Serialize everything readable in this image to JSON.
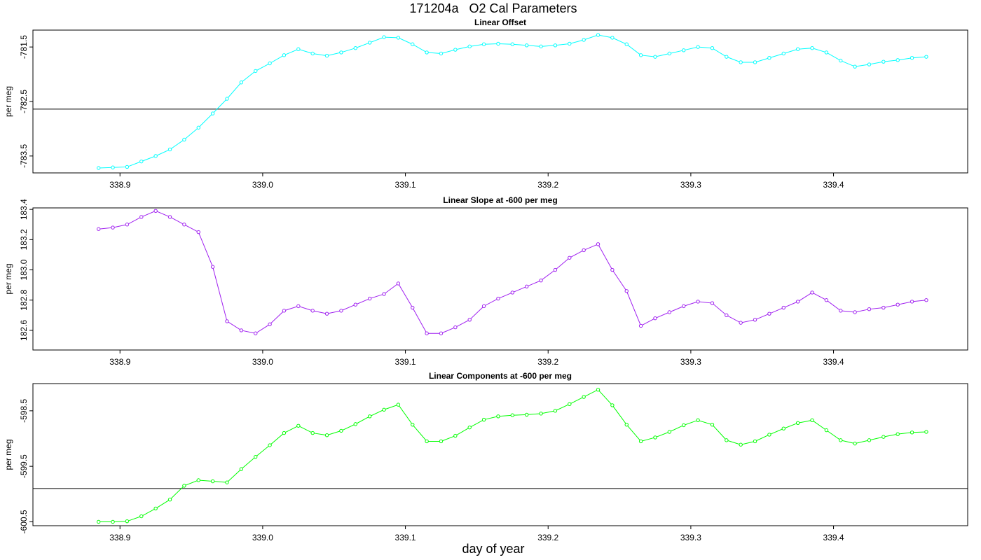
{
  "title": "171204a   O2 Cal Parameters",
  "xlabel": "day of year",
  "chart_data": [
    {
      "type": "line",
      "title": "Linear Offset",
      "ylabel": "per meg",
      "x": [
        338.885,
        338.895,
        338.905,
        338.915,
        338.925,
        338.935,
        338.945,
        338.955,
        338.965,
        338.975,
        338.985,
        338.995,
        339.005,
        339.015,
        339.025,
        339.035,
        339.045,
        339.055,
        339.065,
        339.075,
        339.085,
        339.095,
        339.105,
        339.115,
        339.125,
        339.135,
        339.145,
        339.155,
        339.165,
        339.175,
        339.185,
        339.195,
        339.205,
        339.215,
        339.225,
        339.235,
        339.245,
        339.255,
        339.265,
        339.275,
        339.285,
        339.295,
        339.305,
        339.315,
        339.325,
        339.335,
        339.345,
        339.355,
        339.365,
        339.375,
        339.385,
        339.395,
        339.405,
        339.415,
        339.425,
        339.435,
        339.445,
        339.455,
        339.465
      ],
      "series": [
        {
          "color": "#00ffff",
          "values": [
            -783.72,
            -783.71,
            -783.7,
            -783.6,
            -783.5,
            -783.38,
            -783.2,
            -782.98,
            -782.72,
            -782.45,
            -782.15,
            -781.94,
            -781.8,
            -781.65,
            -781.54,
            -781.62,
            -781.66,
            -781.6,
            -781.52,
            -781.42,
            -781.32,
            -781.33,
            -781.45,
            -781.6,
            -781.62,
            -781.55,
            -781.49,
            -781.45,
            -781.44,
            -781.45,
            -781.47,
            -781.49,
            -781.47,
            -781.44,
            -781.37,
            -781.28,
            -781.33,
            -781.45,
            -781.65,
            -781.68,
            -781.62,
            -781.56,
            -781.5,
            -781.52,
            -781.68,
            -781.78,
            -781.78,
            -781.7,
            -781.62,
            -781.54,
            -781.52,
            -781.6,
            -781.75,
            -781.86,
            -781.82,
            -781.77,
            -781.74,
            -781.7,
            -781.68
          ]
        }
      ],
      "xlim": [
        338.839,
        339.494
      ],
      "ylim": [
        -783.81,
        -781.19
      ],
      "xticks": [
        338.9,
        {
          "value": 339.0,
          "label": "339.0"
        },
        339.1,
        339.2,
        339.3,
        339.4
      ],
      "yticks": [
        -781.5,
        -782.5,
        -783.5
      ],
      "hline": -782.64
    },
    {
      "type": "line",
      "title": "Linear Slope at -600 per meg",
      "ylabel": "per meg",
      "x": [
        338.885,
        338.895,
        338.905,
        338.915,
        338.925,
        338.935,
        338.945,
        338.955,
        338.965,
        338.975,
        338.985,
        338.995,
        339.005,
        339.015,
        339.025,
        339.035,
        339.045,
        339.055,
        339.065,
        339.075,
        339.085,
        339.095,
        339.105,
        339.115,
        339.125,
        339.135,
        339.145,
        339.155,
        339.165,
        339.175,
        339.185,
        339.195,
        339.205,
        339.215,
        339.225,
        339.235,
        339.245,
        339.255,
        339.265,
        339.275,
        339.285,
        339.295,
        339.305,
        339.315,
        339.325,
        339.335,
        339.345,
        339.355,
        339.365,
        339.375,
        339.385,
        339.395,
        339.405,
        339.415,
        339.425,
        339.435,
        339.445,
        339.455,
        339.465
      ],
      "series": [
        {
          "color": "#a020f0",
          "values": [
            183.27,
            183.28,
            183.3,
            183.35,
            183.39,
            183.35,
            183.3,
            183.25,
            183.02,
            182.66,
            182.6,
            182.58,
            182.64,
            182.73,
            182.76,
            182.73,
            182.71,
            182.73,
            182.77,
            182.81,
            182.84,
            182.91,
            182.75,
            182.58,
            182.58,
            182.62,
            182.67,
            182.76,
            182.81,
            182.85,
            182.89,
            182.93,
            183.0,
            183.08,
            183.13,
            183.17,
            183.0,
            182.86,
            182.63,
            182.68,
            182.72,
            182.76,
            182.79,
            182.78,
            182.7,
            182.65,
            182.67,
            182.71,
            182.75,
            182.79,
            182.85,
            182.8,
            182.73,
            182.72,
            182.74,
            182.75,
            182.77,
            182.79,
            182.8
          ]
        }
      ],
      "xlim": [
        338.839,
        339.494
      ],
      "ylim": [
        182.47,
        183.41
      ],
      "xticks": [
        338.9,
        {
          "value": 339.0,
          "label": "339.0"
        },
        339.1,
        339.2,
        339.3,
        339.4
      ],
      "yticks": [
        182.6,
        182.8,
        {
          "value": 183.0,
          "label": "183.0"
        },
        183.2,
        183.4
      ]
    },
    {
      "type": "line",
      "title": "Linear Components at -600 per meg",
      "ylabel": "per meg",
      "x": [
        338.885,
        338.895,
        338.905,
        338.915,
        338.925,
        338.935,
        338.945,
        338.955,
        338.965,
        338.975,
        338.985,
        338.995,
        339.005,
        339.015,
        339.025,
        339.035,
        339.045,
        339.055,
        339.065,
        339.075,
        339.085,
        339.095,
        339.105,
        339.115,
        339.125,
        339.135,
        339.145,
        339.155,
        339.165,
        339.175,
        339.185,
        339.195,
        339.205,
        339.215,
        339.225,
        339.235,
        339.245,
        339.255,
        339.265,
        339.275,
        339.285,
        339.295,
        339.305,
        339.315,
        339.325,
        339.335,
        339.345,
        339.355,
        339.365,
        339.375,
        339.385,
        339.395,
        339.405,
        339.415,
        339.425,
        339.435,
        339.445,
        339.455,
        339.465
      ],
      "series": [
        {
          "color": "#00ff00",
          "values": [
            -600.5,
            -600.5,
            -600.49,
            -600.4,
            -600.26,
            -600.1,
            -599.85,
            -599.75,
            -599.77,
            -599.79,
            -599.55,
            -599.33,
            -599.12,
            -598.9,
            -598.77,
            -598.9,
            -598.94,
            -598.86,
            -598.74,
            -598.6,
            -598.48,
            -598.39,
            -598.75,
            -599.05,
            -599.05,
            -598.95,
            -598.8,
            -598.66,
            -598.6,
            -598.58,
            -598.57,
            -598.55,
            -598.5,
            -598.38,
            -598.25,
            -598.12,
            -598.4,
            -598.75,
            -599.05,
            -598.98,
            -598.88,
            -598.76,
            -598.67,
            -598.75,
            -599.03,
            -599.11,
            -599.05,
            -598.93,
            -598.82,
            -598.72,
            -598.67,
            -598.85,
            -599.03,
            -599.09,
            -599.03,
            -598.97,
            -598.92,
            -598.89,
            -598.88
          ]
        }
      ],
      "xlim": [
        338.839,
        339.494
      ],
      "ylim": [
        -600.57,
        -598.01
      ],
      "xticks": [
        338.9,
        {
          "value": 339.0,
          "label": "339.0"
        },
        339.1,
        339.2,
        339.3,
        339.4
      ],
      "yticks": [
        -598.5,
        -599.5,
        -600.5
      ],
      "hline": -599.9
    }
  ]
}
